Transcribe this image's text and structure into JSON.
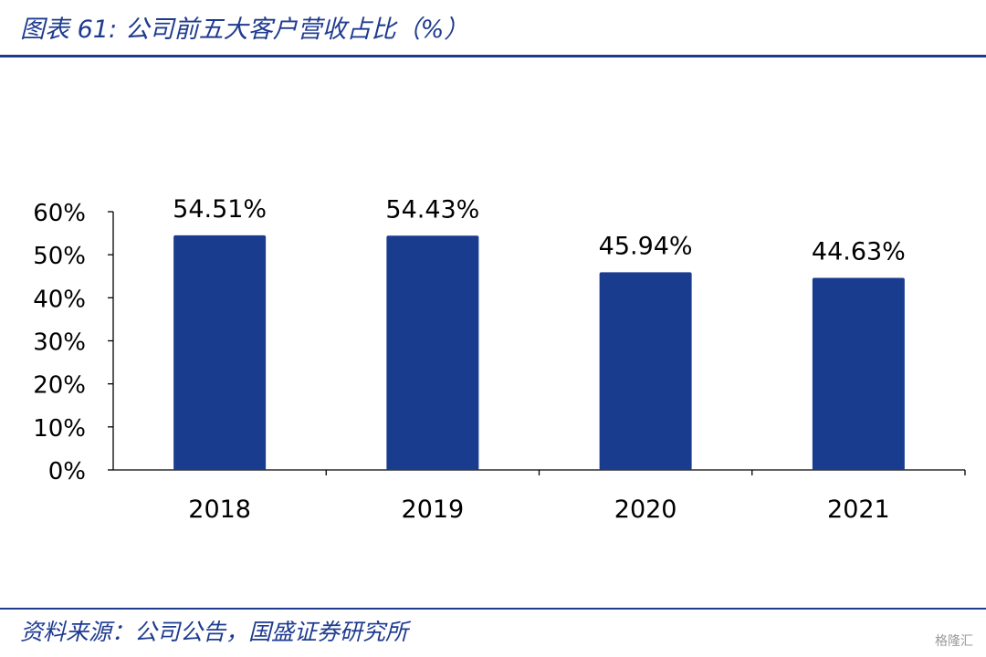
{
  "figure_title": "图表 61:  公司前五大客户营收占比（%）",
  "source_note": "资料来源：公司公告，国盛证券研究所",
  "watermark": "格隆汇",
  "colors": {
    "bar": "#1A3C8F",
    "accent": "#1F3B8F",
    "axis": "#000000"
  },
  "chart_data": {
    "type": "bar",
    "categories": [
      "2018",
      "2019",
      "2020",
      "2021"
    ],
    "values": [
      54.51,
      54.43,
      45.94,
      44.63
    ],
    "data_labels": [
      "54.51%",
      "54.43%",
      "45.94%",
      "44.63%"
    ],
    "y_tick_labels": [
      "0%",
      "10%",
      "20%",
      "30%",
      "40%",
      "50%",
      "60%"
    ],
    "y_ticks": [
      0,
      10,
      20,
      30,
      40,
      50,
      60
    ],
    "ylim": [
      0,
      60
    ],
    "title": "",
    "xlabel": "",
    "ylabel": "",
    "grid": false,
    "legend": "none"
  }
}
